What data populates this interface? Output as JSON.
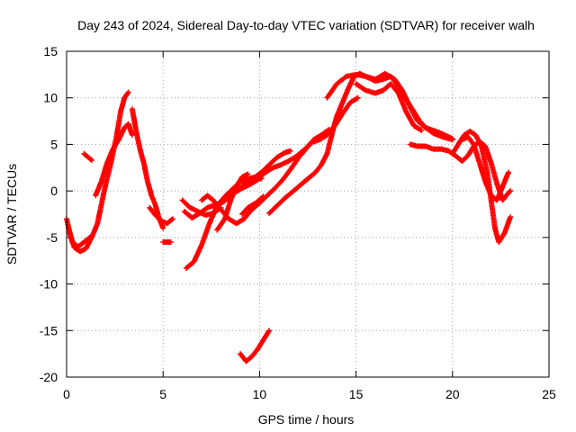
{
  "chart_data": {
    "type": "scatter",
    "title": "Day 243 of 2024, Sidereal Day-to-day VTEC variation (SDTVAR) for receiver walh",
    "xlabel": "GPS time / hours",
    "ylabel": "SDTVAR / TECUs",
    "xlim": [
      0,
      25
    ],
    "ylim": [
      -20,
      15
    ],
    "xticks": [
      "0",
      "5",
      "10",
      "15",
      "20",
      "25"
    ],
    "yticks": [
      "-20",
      "-15",
      "-10",
      "-5",
      "0",
      "5",
      "10",
      "15"
    ],
    "grid": true,
    "marker": "+",
    "series": [
      {
        "name": "SDTVAR",
        "color": "#ff0000",
        "tracks": [
          [
            [
              0.0,
              -3.0
            ],
            [
              0.2,
              -4.8
            ],
            [
              0.4,
              -6.1
            ],
            [
              0.7,
              -6.5
            ],
            [
              1.0,
              -6.2
            ],
            [
              1.3,
              -5.0
            ],
            [
              1.6,
              -3.5
            ],
            [
              1.8,
              -1.5
            ],
            [
              2.0,
              0.5
            ],
            [
              2.3,
              3.0
            ],
            [
              2.6,
              6.0
            ],
            [
              2.8,
              8.5
            ],
            [
              3.0,
              10.0
            ],
            [
              3.2,
              10.6
            ]
          ],
          [
            [
              0.1,
              -4.0
            ],
            [
              0.3,
              -5.5
            ],
            [
              0.6,
              -6.0
            ],
            [
              0.9,
              -5.5
            ],
            [
              1.2,
              -5.0
            ]
          ],
          [
            [
              0.9,
              4.0
            ],
            [
              1.3,
              3.3
            ]
          ],
          [
            [
              1.5,
              -0.5
            ],
            [
              1.8,
              1.0
            ],
            [
              2.1,
              3.0
            ],
            [
              2.4,
              4.5
            ],
            [
              2.7,
              5.5
            ],
            [
              3.0,
              6.8
            ],
            [
              3.2,
              7.2
            ],
            [
              3.4,
              6.0
            ]
          ],
          [
            [
              3.4,
              8.8
            ],
            [
              3.6,
              6.5
            ],
            [
              3.8,
              4.5
            ],
            [
              4.0,
              3.0
            ],
            [
              4.2,
              1.0
            ],
            [
              4.4,
              -0.5
            ],
            [
              4.6,
              -1.5
            ],
            [
              4.8,
              -3.0
            ],
            [
              5.0,
              -4.0
            ]
          ],
          [
            [
              4.3,
              -1.8
            ],
            [
              4.6,
              -2.6
            ],
            [
              4.9,
              -3.2
            ],
            [
              5.2,
              -3.5
            ],
            [
              5.5,
              -3.0
            ]
          ],
          [
            [
              5.0,
              -5.5
            ],
            [
              5.4,
              -5.5
            ]
          ],
          [
            [
              6.0,
              -1.0
            ],
            [
              6.4,
              -1.8
            ],
            [
              6.8,
              -2.2
            ],
            [
              7.2,
              -2.6
            ],
            [
              7.6,
              -2.4
            ],
            [
              8.0,
              -1.8
            ]
          ],
          [
            [
              6.1,
              -2.2
            ],
            [
              6.5,
              -2.9
            ],
            [
              6.9,
              -2.4
            ],
            [
              7.3,
              -1.8
            ],
            [
              7.7,
              -1.5
            ],
            [
              8.1,
              -1.2
            ],
            [
              8.5,
              -0.6
            ],
            [
              8.9,
              0.2
            ],
            [
              9.3,
              0.8
            ],
            [
              9.7,
              1.4
            ],
            [
              10.1,
              2.0
            ],
            [
              10.5,
              2.8
            ],
            [
              10.9,
              3.6
            ],
            [
              11.3,
              4.1
            ],
            [
              11.6,
              4.3
            ]
          ],
          [
            [
              6.2,
              -8.3
            ],
            [
              6.6,
              -7.6
            ],
            [
              7.0,
              -5.8
            ],
            [
              7.4,
              -3.5
            ],
            [
              7.8,
              -1.6
            ],
            [
              8.2,
              -0.6
            ],
            [
              8.6,
              0.2
            ],
            [
              9.0,
              1.0
            ],
            [
              9.4,
              1.3
            ],
            [
              9.8,
              1.5
            ],
            [
              10.1,
              1.3
            ]
          ],
          [
            [
              7.0,
              -1.0
            ],
            [
              7.3,
              -0.5
            ],
            [
              7.6,
              -1.0
            ],
            [
              8.0,
              -2.0
            ],
            [
              8.4,
              -3.0
            ],
            [
              8.8,
              -3.5
            ],
            [
              9.2,
              -3.0
            ],
            [
              9.6,
              -2.0
            ],
            [
              10.0,
              -1.3
            ],
            [
              10.4,
              -0.5
            ],
            [
              10.8,
              0.3
            ],
            [
              11.2,
              1.2
            ],
            [
              11.6,
              2.3
            ],
            [
              12.0,
              3.5
            ],
            [
              12.4,
              4.5
            ],
            [
              12.8,
              5.5
            ],
            [
              13.2,
              6.0
            ],
            [
              13.6,
              6.6
            ]
          ],
          [
            [
              7.8,
              -4.2
            ],
            [
              8.2,
              -3.0
            ],
            [
              8.5,
              -1.0
            ],
            [
              8.8,
              0.5
            ],
            [
              9.1,
              1.5
            ],
            [
              9.4,
              1.8
            ]
          ],
          [
            [
              8.3,
              -0.6
            ],
            [
              8.7,
              -0.2
            ],
            [
              9.1,
              0.3
            ],
            [
              9.5,
              0.7
            ],
            [
              9.9,
              1.2
            ],
            [
              10.3,
              2.0
            ],
            [
              10.7,
              2.5
            ],
            [
              11.1,
              2.8
            ],
            [
              11.5,
              3.2
            ],
            [
              11.9,
              3.7
            ],
            [
              12.3,
              4.4
            ],
            [
              12.7,
              5.2
            ],
            [
              13.1,
              5.5
            ],
            [
              13.5,
              6.0
            ],
            [
              13.9,
              7.0
            ],
            [
              14.3,
              8.3
            ],
            [
              14.7,
              9.5
            ],
            [
              15.1,
              10.0
            ]
          ],
          [
            [
              9.1,
              -2.5
            ],
            [
              9.4,
              -1.8
            ],
            [
              9.8,
              -1.3
            ],
            [
              10.2,
              -0.6
            ]
          ],
          [
            [
              10.5,
              -2.4
            ],
            [
              10.9,
              -1.6
            ],
            [
              11.3,
              -0.8
            ],
            [
              11.7,
              -0.1
            ],
            [
              12.1,
              0.6
            ],
            [
              12.5,
              1.3
            ],
            [
              12.9,
              2.0
            ],
            [
              13.2,
              2.8
            ],
            [
              13.5,
              4.0
            ],
            [
              13.8,
              6.5
            ],
            [
              14.0,
              8.0
            ],
            [
              14.3,
              9.5
            ],
            [
              14.6,
              11.0
            ],
            [
              14.9,
              12.3
            ],
            [
              15.2,
              12.6
            ],
            [
              15.6,
              12.2
            ],
            [
              16.0,
              11.8
            ],
            [
              16.4,
              12.0
            ],
            [
              16.8,
              12.3
            ],
            [
              17.1,
              11.5
            ],
            [
              17.4,
              10.5
            ],
            [
              17.7,
              9.5
            ],
            [
              18.0,
              8.5
            ],
            [
              18.3,
              7.5
            ],
            [
              18.6,
              6.8
            ],
            [
              19.0,
              6.5
            ],
            [
              19.4,
              6.2
            ],
            [
              19.8,
              5.8
            ],
            [
              20.0,
              5.6
            ]
          ],
          [
            [
              9.0,
              -17.5
            ],
            [
              9.3,
              -18.3
            ],
            [
              9.6,
              -17.8
            ],
            [
              9.9,
              -17.0
            ],
            [
              10.2,
              -16.0
            ],
            [
              10.5,
              -15.0
            ]
          ],
          [
            [
              13.5,
              10.0
            ],
            [
              14.0,
              11.5
            ],
            [
              14.5,
              12.3
            ],
            [
              15.0,
              12.5
            ],
            [
              15.5,
              12.3
            ],
            [
              16.0,
              12.0
            ],
            [
              16.5,
              12.6
            ],
            [
              17.0,
              12.0
            ],
            [
              17.4,
              10.8
            ],
            [
              17.8,
              9.0
            ],
            [
              18.2,
              7.5
            ],
            [
              18.6,
              6.8
            ],
            [
              19.0,
              6.2
            ],
            [
              19.5,
              5.8
            ],
            [
              20.0,
              5.5
            ]
          ],
          [
            [
              15.0,
              11.5
            ],
            [
              15.5,
              10.8
            ],
            [
              16.0,
              10.5
            ],
            [
              16.4,
              10.8
            ],
            [
              16.8,
              11.5
            ],
            [
              17.2,
              10.5
            ],
            [
              17.6,
              8.5
            ],
            [
              18.0,
              7.0
            ],
            [
              18.4,
              6.5
            ]
          ],
          [
            [
              17.8,
              5.0
            ],
            [
              18.2,
              4.8
            ],
            [
              18.6,
              4.8
            ],
            [
              19.0,
              4.5
            ],
            [
              19.4,
              4.5
            ],
            [
              19.8,
              4.3
            ],
            [
              20.2,
              3.7
            ],
            [
              20.5,
              3.2
            ],
            [
              20.8,
              3.8
            ],
            [
              21.1,
              4.8
            ],
            [
              21.4,
              5.3
            ],
            [
              21.7,
              4.8
            ],
            [
              22.0,
              3.0
            ],
            [
              22.3,
              0.8
            ],
            [
              22.6,
              -1.0
            ],
            [
              22.9,
              -0.2
            ],
            [
              23.0,
              0.0
            ]
          ],
          [
            [
              20.0,
              4.0
            ],
            [
              20.3,
              5.0
            ],
            [
              20.6,
              6.0
            ],
            [
              20.9,
              6.4
            ],
            [
              21.2,
              6.0
            ],
            [
              21.5,
              4.8
            ],
            [
              21.8,
              2.0
            ],
            [
              22.0,
              -1.0
            ],
            [
              22.2,
              -4.0
            ],
            [
              22.4,
              -5.5
            ],
            [
              22.7,
              -4.5
            ],
            [
              23.0,
              -2.8
            ]
          ],
          [
            [
              20.5,
              5.5
            ],
            [
              20.8,
              5.8
            ],
            [
              21.1,
              5.0
            ],
            [
              21.4,
              3.0
            ],
            [
              21.7,
              1.0
            ],
            [
              22.0,
              -0.5
            ],
            [
              22.3,
              -1.0
            ],
            [
              22.6,
              0.5
            ],
            [
              22.9,
              2.0
            ]
          ]
        ]
      }
    ]
  }
}
